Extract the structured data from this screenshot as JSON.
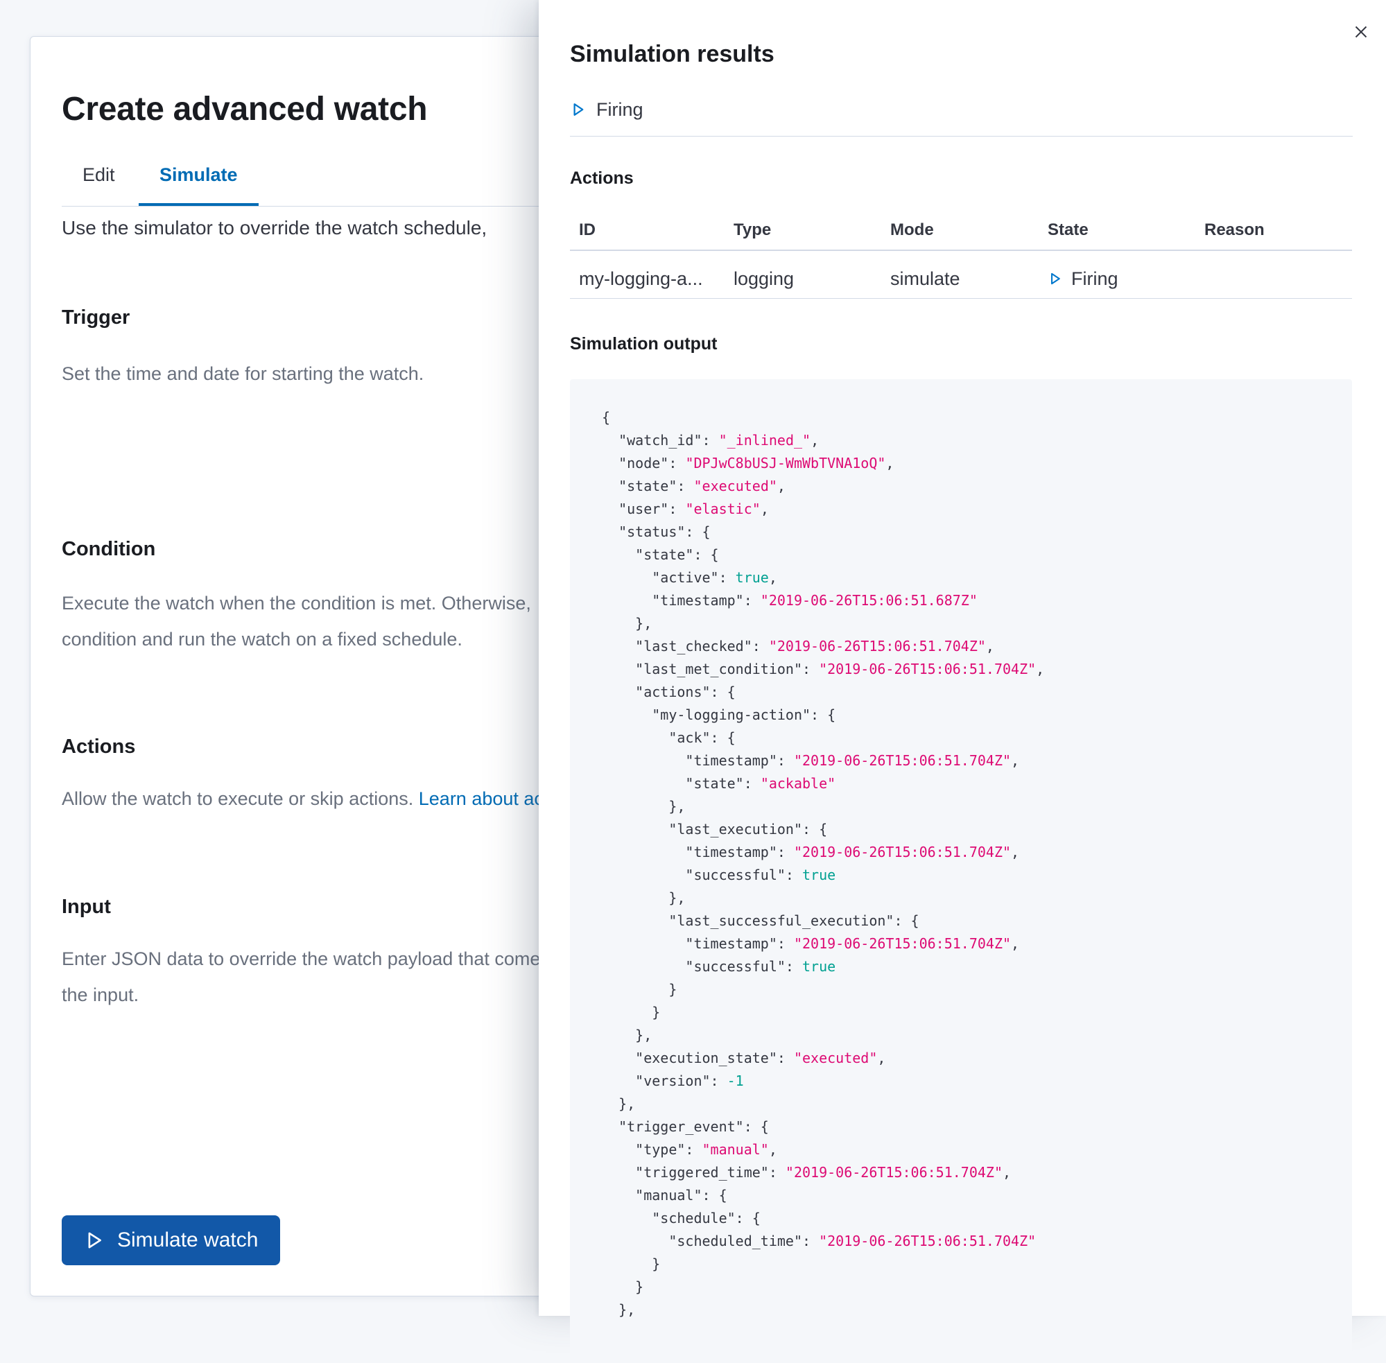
{
  "left_panel": {
    "title": "Create advanced watch",
    "tabs": [
      {
        "label": "Edit",
        "selected": false
      },
      {
        "label": "Simulate",
        "selected": true
      }
    ],
    "intro": "Use the simulator to override the watch schedule,",
    "sections": [
      {
        "heading": "Trigger",
        "lines": [
          "Set the time and date for starting the watch."
        ]
      },
      {
        "heading": "Condition",
        "lines": [
          "Execute the watch when the condition is met. Otherwise,",
          "condition and run the watch on a fixed schedule."
        ]
      },
      {
        "heading": "Actions",
        "lines": [
          "Allow the watch to execute or skip actions. "
        ],
        "link": "Learn about ac"
      },
      {
        "heading": "Input",
        "lines": [
          "Enter JSON data to override the watch payload that come",
          "the input."
        ]
      }
    ],
    "simulate_button": {
      "label": "Simulate watch"
    }
  },
  "flyout": {
    "title": "Simulation results",
    "state_banner": {
      "label": "Firing"
    },
    "actions_section": {
      "heading": "Actions",
      "table": {
        "columns": [
          "ID",
          "Type",
          "Mode",
          "State",
          "Reason"
        ],
        "rows": [
          {
            "id": "my-logging-a...",
            "type": "logging",
            "mode": "simulate",
            "state": "Firing",
            "reason": ""
          }
        ]
      }
    },
    "output_section": {
      "heading": "Simulation output",
      "code_lines": [
        "{",
        "  \"watch_id\": \"_inlined_\",",
        "  \"node\": \"DPJwC8bUSJ-WmWbTVNA1oQ\",",
        "  \"state\": \"executed\",",
        "  \"user\": \"elastic\",",
        "  \"status\": {",
        "    \"state\": {",
        "      \"active\": true,",
        "      \"timestamp\": \"2019-06-26T15:06:51.687Z\"",
        "    },",
        "    \"last_checked\": \"2019-06-26T15:06:51.704Z\",",
        "    \"last_met_condition\": \"2019-06-26T15:06:51.704Z\",",
        "    \"actions\": {",
        "      \"my-logging-action\": {",
        "        \"ack\": {",
        "          \"timestamp\": \"2019-06-26T15:06:51.704Z\",",
        "          \"state\": \"ackable\"",
        "        },",
        "        \"last_execution\": {",
        "          \"timestamp\": \"2019-06-26T15:06:51.704Z\",",
        "          \"successful\": true",
        "        },",
        "        \"last_successful_execution\": {",
        "          \"timestamp\": \"2019-06-26T15:06:51.704Z\",",
        "          \"successful\": true",
        "        }",
        "      }",
        "    },",
        "    \"execution_state\": \"executed\",",
        "    \"version\": -1",
        "  },",
        "  \"trigger_event\": {",
        "    \"type\": \"manual\",",
        "    \"triggered_time\": \"2019-06-26T15:06:51.704Z\",",
        "    \"manual\": {",
        "      \"schedule\": {",
        "        \"scheduled_time\": \"2019-06-26T15:06:51.704Z\"",
        "      }",
        "    }",
        "  },"
      ]
    }
  },
  "colors": {
    "link_blue": "#006BB4",
    "icon_blue": "#0077CC",
    "button_blue": "#1258A8",
    "string_pink": "#DD0A73",
    "literal_teal": "#00A091",
    "code_background": "#F5F7FA",
    "divider": "#D3DAE6"
  }
}
